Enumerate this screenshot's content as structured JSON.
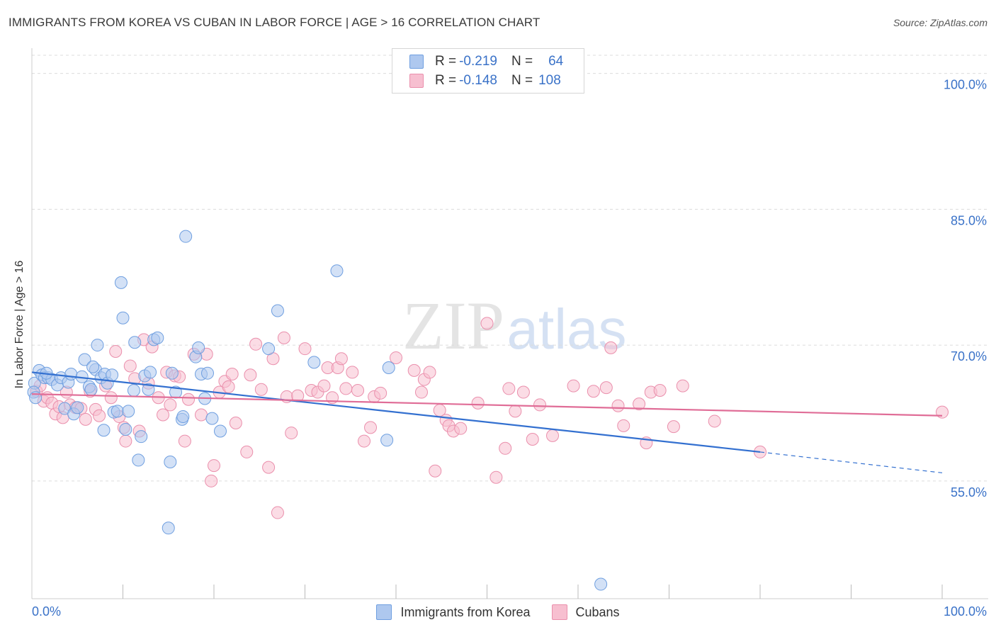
{
  "header": {
    "title": "IMMIGRANTS FROM KOREA VS CUBAN IN LABOR FORCE | AGE > 16 CORRELATION CHART",
    "source": "Source: ZipAtlas.com"
  },
  "legend": {
    "r_label": "R =",
    "n_label": "N =",
    "series": [
      {
        "r": "-0.219",
        "n": "64"
      },
      {
        "r": "-0.148",
        "n": "108"
      }
    ]
  },
  "watermark": {
    "zip": "ZIP",
    "atlas": "atlas"
  },
  "chart_data": {
    "type": "scatter",
    "title": "IMMIGRANTS FROM KOREA VS CUBAN IN LABOR FORCE | AGE > 16 CORRELATION CHART",
    "xlabel": "",
    "ylabel": "In Labor Force | Age > 16",
    "xlim": [
      0,
      100
    ],
    "ylim": [
      42,
      102
    ],
    "x_tick_labels": [
      "0.0%",
      "100.0%"
    ],
    "y_tick_values": [
      55,
      70,
      85,
      100
    ],
    "y_tick_labels": [
      "55.0%",
      "70.0%",
      "85.0%",
      "100.0%"
    ],
    "grid": true,
    "legend_position": "bottom-center",
    "colors": {
      "korea_fill": "#aec8ef",
      "korea_stroke": "#6f9fe0",
      "korea_line": "#3370d0",
      "cuban_fill": "#f7bfd0",
      "cuban_stroke": "#ea8fac",
      "cuban_line": "#e06d97",
      "tick_label": "#3a72c8",
      "grid": "#dcdcdc"
    },
    "series": [
      {
        "name": "Immigrants from Korea",
        "r": -0.219,
        "n": 64,
        "trend": {
          "x": [
            0,
            80
          ],
          "y": [
            67.0,
            58.2
          ]
        },
        "trend_extension": {
          "x": [
            80,
            100
          ],
          "y": [
            58.2,
            55.9
          ]
        },
        "points": [
          [
            0.3,
            65.8
          ],
          [
            0.8,
            67.2
          ],
          [
            1.1,
            66.7
          ],
          [
            1.4,
            66.4
          ],
          [
            1.8,
            66.4
          ],
          [
            2.2,
            66.2
          ],
          [
            2.8,
            65.6
          ],
          [
            3.2,
            66.4
          ],
          [
            3.6,
            63.0
          ],
          [
            4.0,
            65.9
          ],
          [
            4.3,
            66.8
          ],
          [
            4.6,
            62.4
          ],
          [
            5.0,
            63.1
          ],
          [
            5.5,
            66.5
          ],
          [
            5.8,
            68.4
          ],
          [
            6.3,
            65.4
          ],
          [
            6.5,
            65.1
          ],
          [
            7.0,
            67.3
          ],
          [
            7.2,
            70.0
          ],
          [
            7.6,
            66.4
          ],
          [
            7.9,
            60.6
          ],
          [
            8.0,
            66.8
          ],
          [
            8.3,
            65.8
          ],
          [
            8.8,
            66.7
          ],
          [
            9.0,
            62.6
          ],
          [
            9.4,
            62.7
          ],
          [
            9.8,
            76.9
          ],
          [
            10.0,
            73.0
          ],
          [
            10.3,
            60.7
          ],
          [
            10.6,
            62.7
          ],
          [
            11.2,
            65.0
          ],
          [
            11.3,
            70.3
          ],
          [
            11.7,
            57.3
          ],
          [
            12.0,
            59.9
          ],
          [
            12.4,
            66.6
          ],
          [
            12.8,
            65.1
          ],
          [
            13.0,
            67.0
          ],
          [
            13.4,
            70.6
          ],
          [
            13.8,
            70.8
          ],
          [
            15.0,
            49.8
          ],
          [
            15.2,
            57.1
          ],
          [
            15.4,
            66.9
          ],
          [
            15.8,
            64.8
          ],
          [
            16.5,
            61.8
          ],
          [
            16.6,
            62.1
          ],
          [
            16.9,
            82.0
          ],
          [
            18.0,
            68.7
          ],
          [
            18.3,
            69.7
          ],
          [
            18.6,
            66.8
          ],
          [
            19.0,
            64.1
          ],
          [
            19.3,
            66.9
          ],
          [
            19.8,
            61.9
          ],
          [
            20.7,
            60.5
          ],
          [
            26.0,
            69.6
          ],
          [
            27.0,
            73.8
          ],
          [
            31.0,
            68.1
          ],
          [
            33.5,
            78.2
          ],
          [
            39.0,
            59.5
          ],
          [
            39.2,
            67.5
          ],
          [
            62.5,
            43.6
          ],
          [
            0.2,
            64.8
          ],
          [
            1.6,
            66.9
          ],
          [
            6.7,
            67.6
          ],
          [
            0.4,
            64.2
          ]
        ]
      },
      {
        "name": "Cubans",
        "r": -0.148,
        "n": 108,
        "trend": {
          "x": [
            0,
            100
          ],
          "y": [
            64.6,
            62.2
          ]
        },
        "points": [
          [
            0.5,
            64.9
          ],
          [
            0.9,
            65.5
          ],
          [
            1.3,
            63.8
          ],
          [
            1.7,
            64.2
          ],
          [
            2.2,
            63.6
          ],
          [
            2.6,
            62.4
          ],
          [
            3.0,
            63.2
          ],
          [
            3.4,
            62.0
          ],
          [
            3.8,
            64.8
          ],
          [
            4.2,
            63.4
          ],
          [
            4.8,
            63.1
          ],
          [
            5.4,
            63.0
          ],
          [
            5.9,
            61.8
          ],
          [
            6.4,
            64.9
          ],
          [
            7.0,
            62.9
          ],
          [
            7.4,
            62.2
          ],
          [
            8.1,
            65.5
          ],
          [
            8.7,
            64.2
          ],
          [
            9.2,
            69.3
          ],
          [
            9.6,
            62.1
          ],
          [
            10.1,
            60.9
          ],
          [
            10.3,
            59.4
          ],
          [
            10.8,
            67.7
          ],
          [
            11.3,
            66.3
          ],
          [
            11.8,
            60.5
          ],
          [
            12.3,
            70.6
          ],
          [
            12.8,
            65.8
          ],
          [
            13.2,
            69.8
          ],
          [
            13.9,
            64.2
          ],
          [
            14.4,
            62.3
          ],
          [
            14.8,
            67.0
          ],
          [
            15.2,
            63.4
          ],
          [
            15.7,
            66.6
          ],
          [
            16.2,
            66.5
          ],
          [
            16.8,
            59.4
          ],
          [
            17.2,
            64.0
          ],
          [
            17.8,
            69.0
          ],
          [
            18.6,
            62.3
          ],
          [
            19.2,
            69.0
          ],
          [
            19.7,
            55.0
          ],
          [
            20.0,
            56.7
          ],
          [
            20.6,
            64.8
          ],
          [
            21.2,
            66.0
          ],
          [
            21.6,
            65.4
          ],
          [
            22.0,
            66.8
          ],
          [
            22.4,
            61.4
          ],
          [
            23.6,
            58.2
          ],
          [
            24.0,
            66.7
          ],
          [
            24.6,
            70.1
          ],
          [
            25.2,
            65.1
          ],
          [
            26.0,
            56.5
          ],
          [
            26.5,
            68.5
          ],
          [
            27.0,
            51.5
          ],
          [
            27.7,
            70.8
          ],
          [
            28.0,
            64.3
          ],
          [
            28.5,
            60.3
          ],
          [
            29.2,
            64.4
          ],
          [
            30.0,
            69.6
          ],
          [
            30.7,
            65.0
          ],
          [
            31.4,
            64.8
          ],
          [
            32.1,
            65.5
          ],
          [
            32.5,
            67.5
          ],
          [
            33.0,
            64.2
          ],
          [
            33.6,
            67.5
          ],
          [
            34.0,
            68.5
          ],
          [
            34.5,
            65.2
          ],
          [
            35.2,
            67.0
          ],
          [
            35.8,
            65.0
          ],
          [
            36.5,
            59.4
          ],
          [
            37.2,
            60.9
          ],
          [
            37.6,
            64.3
          ],
          [
            38.3,
            64.7
          ],
          [
            40.0,
            68.6
          ],
          [
            42.0,
            67.2
          ],
          [
            42.8,
            64.8
          ],
          [
            43.1,
            66.2
          ],
          [
            43.7,
            67.0
          ],
          [
            44.3,
            56.1
          ],
          [
            44.8,
            62.8
          ],
          [
            45.5,
            61.7
          ],
          [
            45.8,
            61.1
          ],
          [
            46.3,
            60.5
          ],
          [
            47.1,
            60.8
          ],
          [
            49.0,
            63.6
          ],
          [
            50.0,
            72.4
          ],
          [
            51.0,
            55.4
          ],
          [
            52.0,
            58.6
          ],
          [
            52.4,
            65.2
          ],
          [
            53.1,
            62.7
          ],
          [
            54.0,
            64.8
          ],
          [
            55.0,
            59.6
          ],
          [
            55.8,
            63.4
          ],
          [
            57.2,
            60.0
          ],
          [
            59.5,
            65.5
          ],
          [
            61.7,
            64.9
          ],
          [
            63.1,
            65.3
          ],
          [
            63.6,
            69.7
          ],
          [
            64.4,
            63.3
          ],
          [
            65.0,
            61.1
          ],
          [
            66.7,
            63.5
          ],
          [
            67.5,
            59.2
          ],
          [
            68.0,
            64.8
          ],
          [
            69.0,
            65.0
          ],
          [
            70.5,
            61.0
          ],
          [
            71.5,
            65.5
          ],
          [
            75.0,
            61.6
          ],
          [
            80.0,
            58.2
          ],
          [
            100.0,
            62.6
          ]
        ]
      }
    ]
  },
  "legend_bottom": [
    "Immigrants from Korea",
    "Cubans"
  ]
}
